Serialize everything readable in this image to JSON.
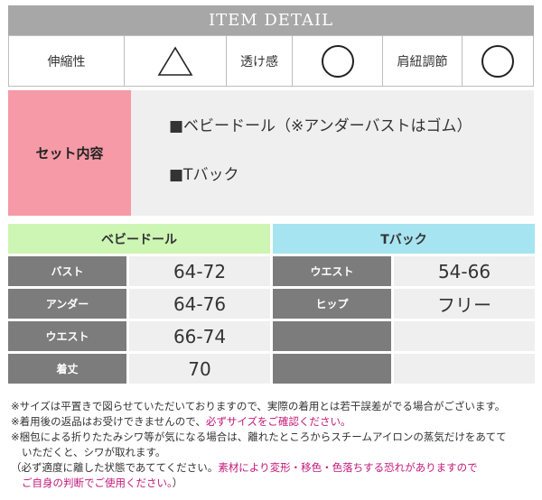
{
  "header": {
    "title": "ITEM DETAIL"
  },
  "attributes": [
    {
      "label": "伸縮性",
      "mark": "△",
      "icon": "triangle-icon"
    },
    {
      "label": "透け感",
      "mark": "○",
      "icon": "circle-icon"
    },
    {
      "label": "肩紐調節",
      "mark": "○",
      "icon": "circle-icon"
    }
  ],
  "set": {
    "label": "セット内容",
    "items": [
      "■ベビードール（※アンダーバストはゴム）",
      "■Tバック"
    ]
  },
  "colors": {
    "header_bg": "#a7a7a7",
    "set_label_bg": "#f59aa6",
    "left_head_bg": "#cdf5b3",
    "right_head_bg": "#a7e4f1",
    "key_bg": "#7c7c7c",
    "value_bg": "#f0efef",
    "highlight": "#c2187a"
  },
  "size_tables": {
    "left": {
      "title": "ベビードール",
      "rows": [
        {
          "key": "バスト",
          "value": "64-72"
        },
        {
          "key": "アンダー",
          "value": "64-76"
        },
        {
          "key": "ウエスト",
          "value": "66-74"
        },
        {
          "key": "着丈",
          "value": "70"
        }
      ]
    },
    "right": {
      "title": "Tバック",
      "rows": [
        {
          "key": "ウエスト",
          "value": "54-66"
        },
        {
          "key": "ヒップ",
          "value": "フリー"
        },
        {
          "key": "",
          "value": ""
        },
        {
          "key": "",
          "value": ""
        }
      ]
    }
  },
  "notes": {
    "line1": "※サイズは平置きで図らせていただいておりますので、実際の着用とは若干誤差がでる場合がございます。",
    "line2_a": "※着用後の返品はお受けできませんので、",
    "line2_b": "必ずサイズをご確認ください。",
    "line3": "※梱包による折りたたみシワ等が気になる場合は、離れたところからスチームアイロンの蒸気だけをあてて",
    "line4": "いただくと、シワが取れます。",
    "line5_a": "（必ず適度に離した状態であててください。",
    "line5_b": "素材により変形・移色・色落ちする恐れがありますので",
    "line6_a": "ご自身の判断でご使用ください。",
    "line6_b": "）"
  }
}
